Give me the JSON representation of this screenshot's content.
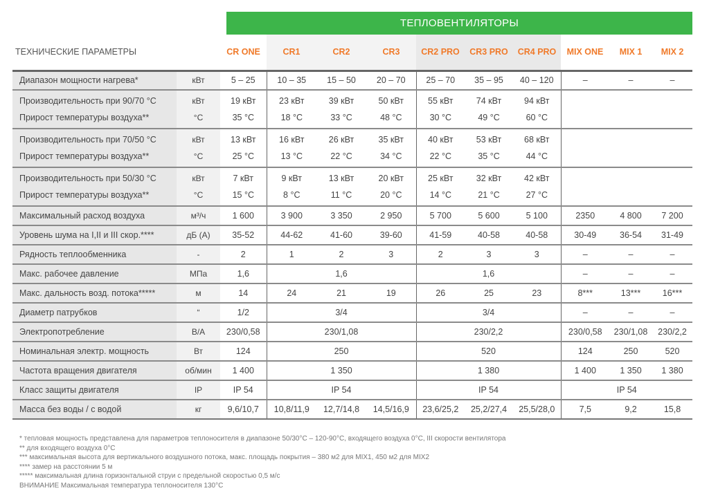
{
  "banner": "ТЕПЛОВЕНТИЛЯТОРЫ",
  "header_label": "ТЕХНИЧЕСКИЕ ПАРАМЕТРЫ",
  "colors": {
    "accent_green": "#3db54a",
    "model_orange": "#f07a2a"
  },
  "models": [
    "CR ONE",
    "CR1",
    "CR2",
    "CR3",
    "CR2 PRO",
    "CR3 PRO",
    "CR4 PRO",
    "MIX ONE",
    "MIX 1",
    "MIX 2"
  ],
  "rows": [
    {
      "labels": [
        "Диапазон мощности нагрева*"
      ],
      "units": [
        "кВт"
      ],
      "cells": [
        {
          "v": [
            "5 – 25"
          ]
        },
        {
          "v": [
            "10 – 35"
          ]
        },
        {
          "v": [
            "15 – 50"
          ]
        },
        {
          "v": [
            "20 – 70"
          ]
        },
        {
          "v": [
            "25 – 70"
          ]
        },
        {
          "v": [
            "35 – 95"
          ]
        },
        {
          "v": [
            "40 – 120"
          ]
        },
        {
          "v": [
            "–"
          ]
        },
        {
          "v": [
            "–"
          ]
        },
        {
          "v": [
            "–"
          ]
        }
      ]
    },
    {
      "labels": [
        "Производительность при 90/70 °C",
        "Прирост температуры воздуха**"
      ],
      "units": [
        "кВт",
        "°C"
      ],
      "cells": [
        {
          "v": [
            "19 кВт",
            "35 °C"
          ]
        },
        {
          "v": [
            "23 кВт",
            "18 °C"
          ]
        },
        {
          "v": [
            "39 кВт",
            "33 °C"
          ]
        },
        {
          "v": [
            "50 кВт",
            "48 °C"
          ]
        },
        {
          "v": [
            "55 кВт",
            "30 °C"
          ]
        },
        {
          "v": [
            "74 кВт",
            "49 °C"
          ]
        },
        {
          "v": [
            "94 кВт",
            "60 °C"
          ]
        },
        {
          "v": [
            ""
          ]
        },
        {
          "v": [
            ""
          ]
        },
        {
          "v": [
            ""
          ]
        }
      ]
    },
    {
      "labels": [
        "Производительность при 70/50 °C",
        "Прирост температуры воздуха**"
      ],
      "units": [
        "кВт",
        "°C"
      ],
      "cells": [
        {
          "v": [
            "13 кВт",
            "25 °C"
          ]
        },
        {
          "v": [
            "16 кВт",
            "13 °C"
          ]
        },
        {
          "v": [
            "26 кВт",
            "22 °C"
          ]
        },
        {
          "v": [
            "35 кВт",
            "34 °C"
          ]
        },
        {
          "v": [
            "40 кВт",
            "22 °C"
          ]
        },
        {
          "v": [
            "53 кВт",
            "35 °C"
          ]
        },
        {
          "v": [
            "68 кВт",
            "44 °C"
          ]
        },
        {
          "v": [
            ""
          ]
        },
        {
          "v": [
            ""
          ]
        },
        {
          "v": [
            ""
          ]
        }
      ]
    },
    {
      "labels": [
        "Производительность при 50/30 °C",
        "Прирост температуры воздуха**"
      ],
      "units": [
        "кВт",
        "°C"
      ],
      "cells": [
        {
          "v": [
            "7 кВт",
            "15 °C"
          ]
        },
        {
          "v": [
            "9 кВт",
            "8 °C"
          ]
        },
        {
          "v": [
            "13 кВт",
            "11 °C"
          ]
        },
        {
          "v": [
            "20 кВт",
            "20 °C"
          ]
        },
        {
          "v": [
            "25 кВт",
            "14 °C"
          ]
        },
        {
          "v": [
            "32 кВт",
            "21 °C"
          ]
        },
        {
          "v": [
            "42 кВт",
            "27 °C"
          ]
        },
        {
          "v": [
            ""
          ]
        },
        {
          "v": [
            ""
          ]
        },
        {
          "v": [
            ""
          ]
        }
      ]
    },
    {
      "labels": [
        "Максимальный расход воздуха"
      ],
      "units": [
        "м³/ч"
      ],
      "cells": [
        {
          "v": [
            "1 600"
          ]
        },
        {
          "v": [
            "3 900"
          ]
        },
        {
          "v": [
            "3 350"
          ]
        },
        {
          "v": [
            "2 950"
          ]
        },
        {
          "v": [
            "5 700"
          ]
        },
        {
          "v": [
            "5 600"
          ]
        },
        {
          "v": [
            "5 100"
          ]
        },
        {
          "v": [
            "2350"
          ]
        },
        {
          "v": [
            "4 800"
          ]
        },
        {
          "v": [
            "7 200"
          ]
        }
      ]
    },
    {
      "labels": [
        "Уровень шума на I,II и III скор.****"
      ],
      "units": [
        "дБ (A)"
      ],
      "cells": [
        {
          "v": [
            "35-52"
          ]
        },
        {
          "v": [
            "44-62"
          ]
        },
        {
          "v": [
            "41-60"
          ]
        },
        {
          "v": [
            "39-60"
          ]
        },
        {
          "v": [
            "41-59"
          ]
        },
        {
          "v": [
            "40-58"
          ]
        },
        {
          "v": [
            "40-58"
          ]
        },
        {
          "v": [
            "30-49"
          ]
        },
        {
          "v": [
            "36-54"
          ]
        },
        {
          "v": [
            "31-49"
          ]
        }
      ]
    },
    {
      "labels": [
        "Рядность теплообменника"
      ],
      "units": [
        "-"
      ],
      "cells": [
        {
          "v": [
            "2"
          ]
        },
        {
          "v": [
            "1"
          ]
        },
        {
          "v": [
            "2"
          ]
        },
        {
          "v": [
            "3"
          ]
        },
        {
          "v": [
            "2"
          ]
        },
        {
          "v": [
            "3"
          ]
        },
        {
          "v": [
            "3"
          ]
        },
        {
          "v": [
            "–"
          ]
        },
        {
          "v": [
            "–"
          ]
        },
        {
          "v": [
            "–"
          ]
        }
      ]
    },
    {
      "labels": [
        "Макс. рабочее давление"
      ],
      "units": [
        "МПа"
      ],
      "cells": [
        {
          "v": [
            "1,6"
          ]
        },
        {
          "v": [
            "1,6"
          ],
          "span": 3
        },
        {
          "v": [
            "1,6"
          ],
          "span": 3
        },
        {
          "v": [
            "–"
          ]
        },
        {
          "v": [
            "–"
          ]
        },
        {
          "v": [
            "–"
          ]
        }
      ]
    },
    {
      "labels": [
        "Макс. дальность возд. потока*****"
      ],
      "units": [
        "м"
      ],
      "cells": [
        {
          "v": [
            "14"
          ]
        },
        {
          "v": [
            "24"
          ]
        },
        {
          "v": [
            "21"
          ]
        },
        {
          "v": [
            "19"
          ]
        },
        {
          "v": [
            "26"
          ]
        },
        {
          "v": [
            "25"
          ]
        },
        {
          "v": [
            "23"
          ]
        },
        {
          "v": [
            "8***"
          ]
        },
        {
          "v": [
            "13***"
          ]
        },
        {
          "v": [
            "16***"
          ]
        }
      ]
    },
    {
      "labels": [
        "Диаметр патрубков"
      ],
      "units": [
        "“"
      ],
      "cells": [
        {
          "v": [
            "1/2"
          ]
        },
        {
          "v": [
            "3/4"
          ],
          "span": 3
        },
        {
          "v": [
            "3/4"
          ],
          "span": 3
        },
        {
          "v": [
            "–"
          ]
        },
        {
          "v": [
            "–"
          ]
        },
        {
          "v": [
            "–"
          ]
        }
      ]
    },
    {
      "labels": [
        "Электропотребление"
      ],
      "units": [
        "B/A"
      ],
      "cells": [
        {
          "v": [
            "230/0,58"
          ]
        },
        {
          "v": [
            "230/1,08"
          ],
          "span": 3
        },
        {
          "v": [
            "230/2,2"
          ],
          "span": 3
        },
        {
          "v": [
            "230/0,58"
          ]
        },
        {
          "v": [
            "230/1,08"
          ]
        },
        {
          "v": [
            "230/2,2"
          ]
        }
      ]
    },
    {
      "labels": [
        "Номинальная электр. мощность"
      ],
      "units": [
        "Вт"
      ],
      "cells": [
        {
          "v": [
            "124"
          ]
        },
        {
          "v": [
            "250"
          ],
          "span": 3
        },
        {
          "v": [
            "520"
          ],
          "span": 3
        },
        {
          "v": [
            "124"
          ]
        },
        {
          "v": [
            "250"
          ]
        },
        {
          "v": [
            "520"
          ]
        }
      ]
    },
    {
      "labels": [
        "Частота вращения двигателя"
      ],
      "units": [
        "об/мин"
      ],
      "cells": [
        {
          "v": [
            "1 400"
          ]
        },
        {
          "v": [
            "1 350"
          ],
          "span": 3
        },
        {
          "v": [
            "1 380"
          ],
          "span": 3
        },
        {
          "v": [
            "1 400"
          ]
        },
        {
          "v": [
            "1 350"
          ]
        },
        {
          "v": [
            "1 380"
          ]
        }
      ]
    },
    {
      "labels": [
        "Класс защиты двигателя"
      ],
      "units": [
        "IP"
      ],
      "cells": [
        {
          "v": [
            "IP 54"
          ]
        },
        {
          "v": [
            "IP 54"
          ],
          "span": 3
        },
        {
          "v": [
            "IP 54"
          ],
          "span": 3
        },
        {
          "v": [
            "IP 54"
          ],
          "span": 3
        }
      ]
    },
    {
      "labels": [
        "Масса без воды / с водой"
      ],
      "units": [
        "кг"
      ],
      "cells": [
        {
          "v": [
            "9,6/10,7"
          ]
        },
        {
          "v": [
            "10,8/11,9"
          ]
        },
        {
          "v": [
            "12,7/14,8"
          ]
        },
        {
          "v": [
            "14,5/16,9"
          ]
        },
        {
          "v": [
            "23,6/25,2"
          ]
        },
        {
          "v": [
            "25,2/27,4"
          ]
        },
        {
          "v": [
            "25,5/28,0"
          ]
        },
        {
          "v": [
            "7,5"
          ]
        },
        {
          "v": [
            "9,2"
          ]
        },
        {
          "v": [
            "15,8"
          ]
        }
      ]
    }
  ],
  "notes": [
    "* тепловая мощность представлена для параметров теплоносителя в диапазоне 50/30°C – 120-90°C, входящего воздуха 0°C, III скорости вентилятора",
    "** для входящего воздуха 0°C",
    "*** максимальная высота для вертикального воздушного потока, макс. площадь покрытия – 380 м2 для  MIX1, 450 м2 для  MIX2",
    "**** замер на расстоянии 5 м",
    "***** максимальная длина горизонтальной струи с предельной скоростью 0,5 м/с",
    "ВНИМАНИЕ Максимальная температура теплоносителя 130°C"
  ]
}
